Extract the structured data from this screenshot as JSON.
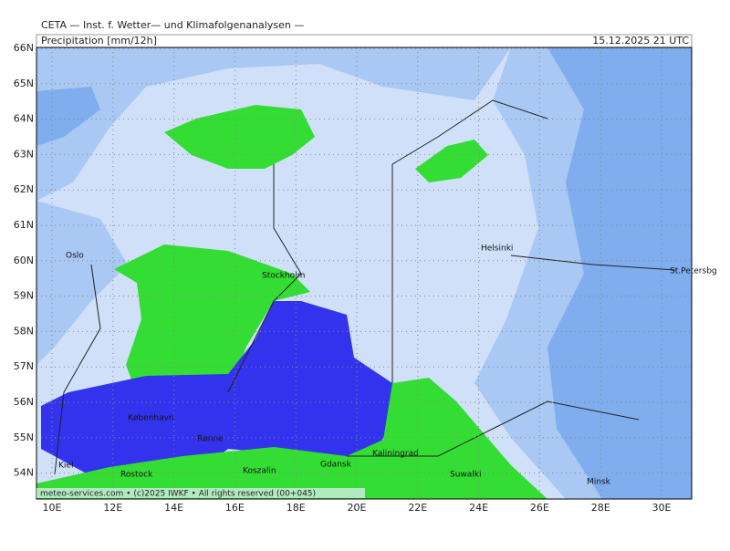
{
  "header": {
    "institute": "CETA — Inst. f. Wetter— und Klimafolgenanalysen —",
    "title": "Precipitation [mm/12h]",
    "datetime": "15.12.2025 21 UTC"
  },
  "map": {
    "latitude_labels": [
      "66N",
      "65N",
      "64N",
      "63N",
      "62N",
      "61N",
      "60N",
      "59N",
      "58N",
      "57N",
      "56N",
      "55N",
      "54N"
    ],
    "longitude_labels": [
      "10E",
      "12E",
      "14E",
      "16E",
      "18E",
      "20E",
      "22E",
      "24E",
      "26E",
      "28E",
      "30E"
    ],
    "places": [
      "Oslo",
      "Stockholm",
      "Helsinki",
      "St.Petersbg",
      "København",
      "Rønne",
      "Kiel",
      "Rostock",
      "Koszalin",
      "Gdansk",
      "Kaliningrad",
      "Suwalki",
      "Minsk"
    ],
    "credit": "meteo-services.com • (c)2025 IWKF • All rights reserved (00+045)"
  }
}
